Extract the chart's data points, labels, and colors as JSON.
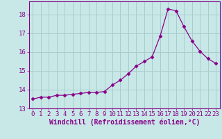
{
  "x": [
    0,
    1,
    2,
    3,
    4,
    5,
    6,
    7,
    8,
    9,
    10,
    11,
    12,
    13,
    14,
    15,
    16,
    17,
    18,
    19,
    20,
    21,
    22,
    23
  ],
  "y": [
    13.5,
    13.6,
    13.6,
    13.7,
    13.7,
    13.75,
    13.8,
    13.85,
    13.85,
    13.9,
    14.25,
    14.5,
    14.85,
    15.25,
    15.5,
    15.75,
    16.85,
    18.3,
    18.2,
    17.35,
    16.6,
    16.05,
    15.65,
    15.4
  ],
  "line_color": "#880088",
  "marker": "D",
  "marker_size": 2.5,
  "bg_color": "#c8e8e8",
  "grid_color": "#aacccc",
  "xlabel": "Windchill (Refroidissement éolien,°C)",
  "xlabel_fontsize": 7,
  "tick_fontsize": 6.5,
  "ylim": [
    13.0,
    18.7
  ],
  "xlim": [
    -0.5,
    23.5
  ],
  "yticks": [
    13,
    14,
    15,
    16,
    17,
    18
  ],
  "xticks": [
    0,
    1,
    2,
    3,
    4,
    5,
    6,
    7,
    8,
    9,
    10,
    11,
    12,
    13,
    14,
    15,
    16,
    17,
    18,
    19,
    20,
    21,
    22,
    23
  ]
}
